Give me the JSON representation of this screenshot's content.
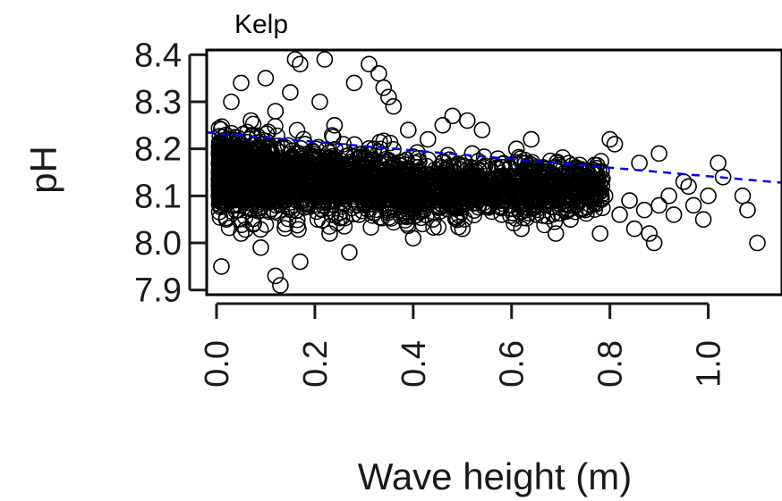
{
  "chart_data": {
    "type": "scatter",
    "title": "Kelp",
    "xlabel": "Wave height (m)",
    "ylabel": "pH",
    "xlim": [
      -0.02,
      1.15
    ],
    "ylim": [
      7.89,
      8.41
    ],
    "x_ticks": [
      0.0,
      0.2,
      0.4,
      0.6,
      0.8,
      1.0
    ],
    "x_tick_labels": [
      "0.0",
      "0.2",
      "0.4",
      "0.6",
      "0.8",
      "1.0"
    ],
    "y_ticks": [
      7.9,
      8.0,
      8.1,
      8.2,
      8.3,
      8.4
    ],
    "y_tick_labels": [
      "7.9",
      "8.0",
      "8.1",
      "8.2",
      "8.3",
      "8.4"
    ],
    "grid": false,
    "legend": "none",
    "marker": "open-circle",
    "colors": {
      "points": "#000000",
      "trend": "#0000ee",
      "axis": "#1a1a1a"
    },
    "trend_line": {
      "style": "dashed",
      "points": [
        [
          -0.02,
          8.235
        ],
        [
          1.15,
          8.128
        ]
      ]
    },
    "series": [
      {
        "values": [
          [
            0.01,
            7.95
          ],
          [
            0.02,
            8.05
          ],
          [
            0.03,
            8.22
          ],
          [
            0.03,
            8.3
          ],
          [
            0.04,
            8.12
          ],
          [
            0.05,
            8.34
          ],
          [
            0.05,
            8.02
          ],
          [
            0.06,
            8.18
          ],
          [
            0.07,
            8.26
          ],
          [
            0.08,
            8.08
          ],
          [
            0.09,
            7.99
          ],
          [
            0.1,
            8.35
          ],
          [
            0.11,
            8.15
          ],
          [
            0.12,
            7.93
          ],
          [
            0.12,
            8.28
          ],
          [
            0.13,
            7.91
          ],
          [
            0.14,
            8.04
          ],
          [
            0.15,
            8.32
          ],
          [
            0.16,
            8.39
          ],
          [
            0.17,
            8.38
          ],
          [
            0.17,
            7.96
          ],
          [
            0.18,
            8.21
          ],
          [
            0.2,
            8.1
          ],
          [
            0.21,
            8.3
          ],
          [
            0.22,
            8.39
          ],
          [
            0.23,
            8.02
          ],
          [
            0.24,
            8.25
          ],
          [
            0.26,
            8.15
          ],
          [
            0.27,
            7.98
          ],
          [
            0.28,
            8.34
          ],
          [
            0.29,
            8.06
          ],
          [
            0.31,
            8.38
          ],
          [
            0.32,
            8.2
          ],
          [
            0.33,
            8.36
          ],
          [
            0.34,
            8.33
          ],
          [
            0.35,
            8.31
          ],
          [
            0.36,
            8.29
          ],
          [
            0.37,
            8.11
          ],
          [
            0.39,
            8.24
          ],
          [
            0.4,
            8.01
          ],
          [
            0.41,
            8.18
          ],
          [
            0.43,
            8.22
          ],
          [
            0.44,
            8.05
          ],
          [
            0.46,
            8.25
          ],
          [
            0.47,
            8.14
          ],
          [
            0.48,
            8.27
          ],
          [
            0.5,
            8.03
          ],
          [
            0.51,
            8.26
          ],
          [
            0.52,
            8.19
          ],
          [
            0.54,
            8.24
          ],
          [
            0.55,
            8.08
          ],
          [
            0.57,
            8.16
          ],
          [
            0.58,
            8.06
          ],
          [
            0.6,
            8.12
          ],
          [
            0.61,
            8.2
          ],
          [
            0.62,
            8.03
          ],
          [
            0.64,
            8.22
          ],
          [
            0.65,
            8.06
          ],
          [
            0.66,
            8.14
          ],
          [
            0.68,
            8.09
          ],
          [
            0.69,
            8.02
          ],
          [
            0.7,
            8.11
          ],
          [
            0.72,
            8.05
          ],
          [
            0.73,
            8.16
          ],
          [
            0.74,
            8.13
          ],
          [
            0.75,
            8.07
          ],
          [
            0.76,
            8.1
          ],
          [
            0.78,
            8.02
          ],
          [
            0.79,
            8.1
          ],
          [
            0.8,
            8.22
          ],
          [
            0.81,
            8.21
          ],
          [
            0.82,
            8.06
          ],
          [
            0.84,
            8.09
          ],
          [
            0.85,
            8.03
          ],
          [
            0.86,
            8.17
          ],
          [
            0.87,
            8.07
          ],
          [
            0.88,
            8.02
          ],
          [
            0.89,
            8.0
          ],
          [
            0.9,
            8.19
          ],
          [
            0.9,
            8.08
          ],
          [
            0.92,
            8.1
          ],
          [
            0.93,
            8.06
          ],
          [
            0.95,
            8.13
          ],
          [
            0.96,
            8.12
          ],
          [
            0.97,
            8.08
          ],
          [
            0.99,
            8.05
          ],
          [
            1.0,
            8.1
          ],
          [
            1.02,
            8.17
          ],
          [
            1.03,
            8.14
          ],
          [
            1.07,
            8.1
          ],
          [
            1.08,
            8.07
          ],
          [
            1.1,
            8.0
          ]
        ]
      }
    ]
  }
}
